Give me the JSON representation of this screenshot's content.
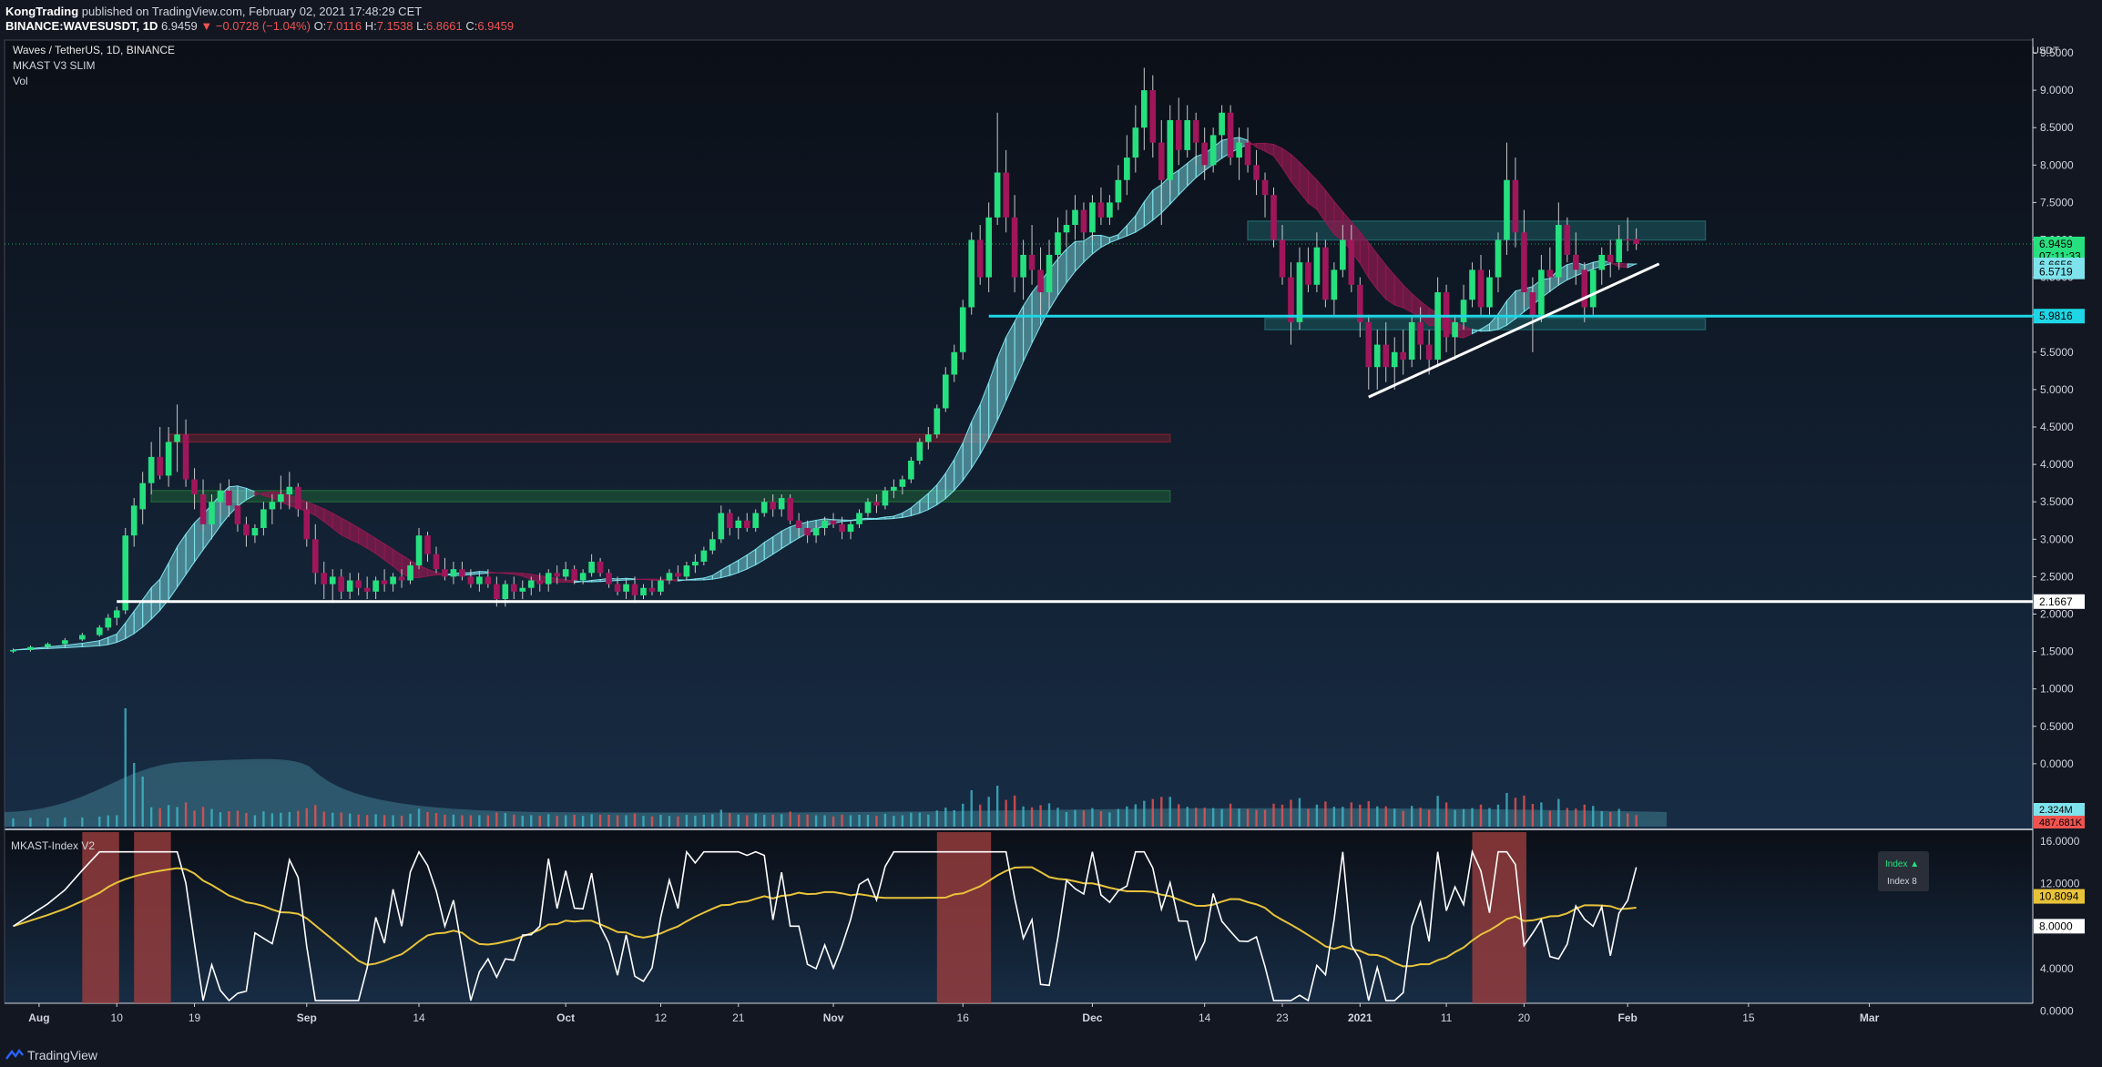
{
  "header": {
    "publisher": "KongTrading",
    "published_text": "published on TradingView.com, February 02, 2021 17:48:29 CET",
    "symbol": "BINANCE:WAVESUSDT, 1D",
    "last": "6.9459",
    "change": "−0.0728 (−1.04%)",
    "o_label": "O:",
    "o": "7.0116",
    "h_label": "H:",
    "h": "7.1538",
    "l_label": "L:",
    "l": "6.8661",
    "c_label": "C:",
    "c": "6.9459"
  },
  "legend": {
    "pair": "Waves / TetherUS, 1D, BINANCE",
    "indicator1": "MKAST V3 SLIM",
    "indicator2": "Vol",
    "pane2_title": "MKAST-Index V2",
    "index_up": "Index ▲",
    "index_8": "Index 8"
  },
  "footer": {
    "brand": "TradingView"
  },
  "colors": {
    "background": "#131722",
    "bull": "#26e07f",
    "bear": "#a0165a",
    "ribbon_up": "#7ee3ec",
    "ribbon_down": "#8b1a4f",
    "resistance_zone": "#1d5c63",
    "support_red": "#6e1f2c",
    "support_green": "#1d5e36",
    "index_line": "#ffffff",
    "index_ma": "#e8c33a",
    "index_zone": "#a4403f"
  },
  "chart_data": {
    "type": "candlestick",
    "title": "Waves / TetherUS, 1D, BINANCE",
    "currency_label": "USDT",
    "price_axis_ticks": [
      "9.5000",
      "9.0000",
      "8.5000",
      "8.0000",
      "7.5000",
      "7.0000",
      "6.5000",
      "6.0000",
      "5.5000",
      "5.0000",
      "4.5000",
      "4.0000",
      "3.5000",
      "3.0000",
      "2.5000",
      "2.0000",
      "1.5000",
      "1.0000",
      "0.5000",
      "0.0000"
    ],
    "x_axis_ticks": [
      "Aug",
      "10",
      "19",
      "Sep",
      "14",
      "Oct",
      "12",
      "21",
      "Nov",
      "16",
      "Dec",
      "14",
      "23",
      "2021",
      "11",
      "20",
      "Feb",
      "15",
      "Mar"
    ],
    "price_labels": [
      {
        "text": "6.9459",
        "value": 6.9459,
        "color": "#26e07f"
      },
      {
        "text": "07:11:33",
        "value": 6.78,
        "color": "#26e07f"
      },
      {
        "text": "6.6656",
        "value": 6.6656,
        "color": "#7ee3ec"
      },
      {
        "text": "6.5719",
        "value": 6.5719,
        "color": "#7ee3ec"
      },
      {
        "text": "5.9816",
        "value": 5.9816,
        "color": "#1fd6e6"
      },
      {
        "text": "2.1667",
        "value": 2.1667,
        "color": "#ffffff"
      }
    ],
    "volume_labels": [
      {
        "text": "2.324M",
        "color": "#7ee3ec"
      },
      {
        "text": "487.681K",
        "color": "#ef5350"
      }
    ],
    "horizontal_lines": [
      {
        "value": 2.1667,
        "color": "#ffffff",
        "from": "Aug 10"
      },
      {
        "value": 5.9816,
        "color": "#1fd6e6",
        "from": "Nov 19"
      }
    ],
    "zones": [
      {
        "low": 4.3,
        "high": 4.4,
        "color": "#6e1f2c",
        "from": "Aug 16",
        "to": "Dec 10"
      },
      {
        "low": 3.5,
        "high": 3.65,
        "color": "#1d5e36",
        "from": "Aug 14",
        "to": "Dec 10"
      },
      {
        "low": 7.0,
        "high": 7.25,
        "color": "#1d5c63",
        "from": "Dec 19",
        "to": "Feb 10"
      },
      {
        "low": 5.8,
        "high": 5.95,
        "color": "#1d5c63",
        "from": "Dec 21",
        "to": "Feb 10"
      }
    ],
    "trendline": {
      "from_date": "Jan 2",
      "from_value": 4.9,
      "to_date": "Feb 2",
      "to_value": 6.6,
      "color": "#ffffff"
    },
    "candles": [
      [
        "Jul 29",
        1.5,
        1.54,
        1.48,
        1.52
      ],
      [
        "Jul 31",
        1.52,
        1.58,
        1.5,
        1.56
      ],
      [
        "Aug 2",
        1.56,
        1.62,
        1.54,
        1.6
      ],
      [
        "Aug 4",
        1.6,
        1.68,
        1.58,
        1.65
      ],
      [
        "Aug 6",
        1.66,
        1.75,
        1.64,
        1.72
      ],
      [
        "Aug 8",
        1.72,
        1.85,
        1.7,
        1.82
      ],
      [
        "Aug 9",
        1.82,
        2.0,
        1.78,
        1.95
      ],
      [
        "Aug 10",
        1.95,
        2.1,
        1.85,
        2.05
      ],
      [
        "Aug 11",
        2.05,
        3.15,
        2.0,
        3.05
      ],
      [
        "Aug 12",
        3.05,
        3.55,
        2.9,
        3.45
      ],
      [
        "Aug 13",
        3.4,
        3.9,
        3.2,
        3.75
      ],
      [
        "Aug 14",
        3.75,
        4.3,
        3.6,
        4.1
      ],
      [
        "Aug 15",
        4.1,
        4.5,
        3.8,
        3.85
      ],
      [
        "Aug 16",
        3.85,
        4.5,
        3.7,
        4.3
      ],
      [
        "Aug 17",
        4.3,
        4.8,
        3.9,
        4.4
      ],
      [
        "Aug 18",
        4.4,
        4.6,
        3.7,
        3.8
      ],
      [
        "Aug 19",
        3.8,
        3.95,
        3.4,
        3.6
      ],
      [
        "Aug 20",
        3.6,
        3.8,
        3.1,
        3.2
      ],
      [
        "Aug 21",
        3.2,
        3.6,
        3.0,
        3.5
      ],
      [
        "Aug 22",
        3.5,
        3.75,
        3.3,
        3.65
      ],
      [
        "Aug 23",
        3.65,
        3.8,
        3.3,
        3.45
      ],
      [
        "Aug 24",
        3.45,
        3.6,
        3.1,
        3.2
      ],
      [
        "Aug 25",
        3.2,
        3.3,
        2.9,
        3.05
      ],
      [
        "Aug 26",
        3.05,
        3.2,
        2.95,
        3.15
      ],
      [
        "Aug 27",
        3.15,
        3.5,
        3.05,
        3.4
      ],
      [
        "Aug 28",
        3.4,
        3.6,
        3.2,
        3.5
      ],
      [
        "Aug 29",
        3.5,
        3.85,
        3.4,
        3.6
      ],
      [
        "Aug 30",
        3.6,
        3.9,
        3.4,
        3.7
      ],
      [
        "Aug 31",
        3.7,
        3.75,
        3.3,
        3.4
      ],
      [
        "Sep 1",
        3.4,
        3.5,
        2.9,
        3.0
      ],
      [
        "Sep 2",
        3.0,
        3.2,
        2.4,
        2.55
      ],
      [
        "Sep 3",
        2.55,
        2.7,
        2.2,
        2.4
      ],
      [
        "Sep 4",
        2.4,
        2.6,
        2.15,
        2.5
      ],
      [
        "Sep 5",
        2.5,
        2.6,
        2.2,
        2.3
      ],
      [
        "Sep 6",
        2.3,
        2.55,
        2.2,
        2.45
      ],
      [
        "Sep 7",
        2.45,
        2.55,
        2.25,
        2.35
      ],
      [
        "Sep 8",
        2.35,
        2.5,
        2.2,
        2.3
      ],
      [
        "Sep 9",
        2.3,
        2.5,
        2.2,
        2.45
      ],
      [
        "Sep 10",
        2.45,
        2.6,
        2.3,
        2.4
      ],
      [
        "Sep 11",
        2.4,
        2.55,
        2.3,
        2.5
      ],
      [
        "Sep 12",
        2.5,
        2.6,
        2.35,
        2.45
      ],
      [
        "Sep 13",
        2.45,
        2.7,
        2.4,
        2.65
      ],
      [
        "Sep 14",
        2.65,
        3.15,
        2.6,
        3.05
      ],
      [
        "Sep 15",
        3.05,
        3.1,
        2.7,
        2.8
      ],
      [
        "Sep 16",
        2.8,
        2.9,
        2.55,
        2.6
      ],
      [
        "Sep 17",
        2.6,
        2.75,
        2.45,
        2.5
      ],
      [
        "Sep 18",
        2.5,
        2.7,
        2.4,
        2.6
      ],
      [
        "Sep 19",
        2.6,
        2.7,
        2.45,
        2.5
      ],
      [
        "Sep 20",
        2.5,
        2.6,
        2.35,
        2.4
      ],
      [
        "Sep 21",
        2.4,
        2.55,
        2.3,
        2.5
      ],
      [
        "Sep 22",
        2.5,
        2.6,
        2.35,
        2.4
      ],
      [
        "Sep 23",
        2.4,
        2.5,
        2.1,
        2.2
      ],
      [
        "Sep 24",
        2.2,
        2.45,
        2.1,
        2.4
      ],
      [
        "Sep 25",
        2.4,
        2.5,
        2.2,
        2.3
      ],
      [
        "Sep 26",
        2.3,
        2.45,
        2.2,
        2.35
      ],
      [
        "Sep 27",
        2.35,
        2.5,
        2.25,
        2.45
      ],
      [
        "Sep 28",
        2.45,
        2.55,
        2.3,
        2.4
      ],
      [
        "Sep 29",
        2.4,
        2.6,
        2.3,
        2.55
      ],
      [
        "Sep 30",
        2.55,
        2.65,
        2.4,
        2.5
      ],
      [
        "Oct 1",
        2.5,
        2.7,
        2.45,
        2.6
      ],
      [
        "Oct 2",
        2.6,
        2.65,
        2.4,
        2.45
      ],
      [
        "Oct 3",
        2.45,
        2.6,
        2.4,
        2.55
      ],
      [
        "Oct 4",
        2.55,
        2.8,
        2.5,
        2.7
      ],
      [
        "Oct 5",
        2.7,
        2.75,
        2.5,
        2.55
      ],
      [
        "Oct 6",
        2.55,
        2.6,
        2.35,
        2.4
      ],
      [
        "Oct 7",
        2.4,
        2.5,
        2.25,
        2.3
      ],
      [
        "Oct 8",
        2.3,
        2.45,
        2.2,
        2.4
      ],
      [
        "Oct 9",
        2.4,
        2.5,
        2.15,
        2.25
      ],
      [
        "Oct 10",
        2.25,
        2.4,
        2.2,
        2.35
      ],
      [
        "Oct 11",
        2.35,
        2.45,
        2.25,
        2.3
      ],
      [
        "Oct 12",
        2.3,
        2.5,
        2.25,
        2.45
      ],
      [
        "Oct 13",
        2.45,
        2.6,
        2.4,
        2.55
      ],
      [
        "Oct 14",
        2.55,
        2.65,
        2.45,
        2.5
      ],
      [
        "Oct 15",
        2.5,
        2.7,
        2.45,
        2.65
      ],
      [
        "Oct 16",
        2.65,
        2.8,
        2.55,
        2.7
      ],
      [
        "Oct 17",
        2.7,
        2.9,
        2.65,
        2.85
      ],
      [
        "Oct 18",
        2.85,
        3.1,
        2.8,
        3.0
      ],
      [
        "Oct 19",
        3.0,
        3.45,
        2.95,
        3.35
      ],
      [
        "Oct 20",
        3.35,
        3.4,
        3.05,
        3.15
      ],
      [
        "Oct 21",
        3.15,
        3.3,
        3.0,
        3.25
      ],
      [
        "Oct 22",
        3.25,
        3.35,
        3.1,
        3.15
      ],
      [
        "Oct 23",
        3.15,
        3.4,
        3.1,
        3.35
      ],
      [
        "Oct 24",
        3.35,
        3.55,
        3.3,
        3.5
      ],
      [
        "Oct 25",
        3.5,
        3.6,
        3.3,
        3.4
      ],
      [
        "Oct 26",
        3.4,
        3.6,
        3.3,
        3.55
      ],
      [
        "Oct 27",
        3.55,
        3.6,
        3.2,
        3.25
      ],
      [
        "Oct 28",
        3.25,
        3.35,
        3.05,
        3.15
      ],
      [
        "Oct 29",
        3.15,
        3.25,
        2.95,
        3.05
      ],
      [
        "Oct 30",
        3.05,
        3.2,
        2.95,
        3.15
      ],
      [
        "Oct 31",
        3.15,
        3.3,
        3.05,
        3.25
      ],
      [
        "Nov 1",
        3.25,
        3.35,
        3.15,
        3.2
      ],
      [
        "Nov 2",
        3.2,
        3.3,
        3.0,
        3.1
      ],
      [
        "Nov 3",
        3.1,
        3.25,
        3.0,
        3.2
      ],
      [
        "Nov 4",
        3.2,
        3.4,
        3.15,
        3.35
      ],
      [
        "Nov 5",
        3.35,
        3.55,
        3.3,
        3.5
      ],
      [
        "Nov 6",
        3.5,
        3.6,
        3.35,
        3.45
      ],
      [
        "Nov 7",
        3.45,
        3.7,
        3.4,
        3.65
      ],
      [
        "Nov 8",
        3.65,
        3.8,
        3.55,
        3.7
      ],
      [
        "Nov 9",
        3.7,
        3.85,
        3.6,
        3.8
      ],
      [
        "Nov 10",
        3.8,
        4.1,
        3.75,
        4.05
      ],
      [
        "Nov 11",
        4.05,
        4.35,
        4.0,
        4.3
      ],
      [
        "Nov 12",
        4.3,
        4.5,
        4.2,
        4.4
      ],
      [
        "Nov 13",
        4.4,
        4.8,
        4.35,
        4.75
      ],
      [
        "Nov 14",
        4.75,
        5.3,
        4.7,
        5.2
      ],
      [
        "Nov 15",
        5.2,
        5.6,
        5.1,
        5.5
      ],
      [
        "Nov 16",
        5.5,
        6.2,
        5.4,
        6.1
      ],
      [
        "Nov 17",
        6.1,
        7.1,
        6.0,
        7.0
      ],
      [
        "Nov 18",
        7.0,
        7.2,
        6.4,
        6.5
      ],
      [
        "Nov 19",
        6.5,
        7.5,
        6.3,
        7.3
      ],
      [
        "Nov 20",
        7.3,
        8.7,
        7.2,
        7.9
      ],
      [
        "Nov 21",
        7.9,
        8.2,
        7.1,
        7.3
      ],
      [
        "Nov 22",
        7.3,
        7.6,
        6.3,
        6.5
      ],
      [
        "Nov 23",
        6.5,
        7.0,
        6.2,
        6.8
      ],
      [
        "Nov 24",
        6.8,
        7.2,
        6.4,
        6.6
      ],
      [
        "Nov 25",
        6.6,
        6.9,
        6.0,
        6.3
      ],
      [
        "Nov 26",
        6.3,
        7.0,
        6.1,
        6.8
      ],
      [
        "Nov 27",
        6.8,
        7.3,
        6.6,
        7.1
      ],
      [
        "Nov 28",
        7.1,
        7.4,
        6.9,
        7.2
      ],
      [
        "Nov 29",
        7.2,
        7.6,
        7.0,
        7.4
      ],
      [
        "Nov 30",
        7.4,
        7.5,
        7.0,
        7.1
      ],
      [
        "Dec 1",
        7.1,
        7.6,
        7.0,
        7.5
      ],
      [
        "Dec 2",
        7.5,
        7.7,
        7.2,
        7.3
      ],
      [
        "Dec 3",
        7.3,
        7.6,
        7.2,
        7.5
      ],
      [
        "Dec 4",
        7.5,
        8.0,
        7.4,
        7.8
      ],
      [
        "Dec 5",
        7.8,
        8.4,
        7.6,
        8.1
      ],
      [
        "Dec 6",
        8.1,
        8.8,
        7.9,
        8.5
      ],
      [
        "Dec 7",
        8.5,
        9.3,
        8.2,
        9.0
      ],
      [
        "Dec 8",
        9.0,
        9.2,
        8.1,
        8.3
      ],
      [
        "Dec 9",
        8.3,
        8.6,
        7.2,
        7.8
      ],
      [
        "Dec 10",
        7.8,
        8.8,
        7.6,
        8.6
      ],
      [
        "Dec 11",
        8.6,
        8.9,
        8.0,
        8.2
      ],
      [
        "Dec 12",
        8.2,
        8.8,
        8.1,
        8.6
      ],
      [
        "Dec 13",
        8.6,
        8.7,
        8.0,
        8.3
      ],
      [
        "Dec 14",
        8.3,
        8.5,
        7.8,
        8.0
      ],
      [
        "Dec 15",
        8.0,
        8.5,
        7.9,
        8.4
      ],
      [
        "Dec 16",
        8.4,
        8.8,
        8.2,
        8.7
      ],
      [
        "Dec 17",
        8.7,
        8.8,
        8.0,
        8.1
      ],
      [
        "Dec 18",
        8.1,
        8.5,
        7.8,
        8.3
      ],
      [
        "Dec 19",
        8.3,
        8.5,
        7.9,
        8.0
      ],
      [
        "Dec 20",
        8.0,
        8.2,
        7.6,
        7.8
      ],
      [
        "Dec 21",
        7.8,
        7.9,
        7.3,
        7.6
      ],
      [
        "Dec 22",
        7.6,
        7.7,
        6.9,
        7.0
      ],
      [
        "Dec 23",
        7.0,
        7.2,
        6.4,
        6.5
      ],
      [
        "Dec 24",
        6.5,
        6.7,
        5.6,
        5.9
      ],
      [
        "Dec 25",
        5.9,
        6.9,
        5.8,
        6.7
      ],
      [
        "Dec 26",
        6.7,
        6.9,
        6.3,
        6.4
      ],
      [
        "Dec 27",
        6.4,
        7.1,
        6.3,
        6.9
      ],
      [
        "Dec 28",
        6.9,
        7.0,
        6.1,
        6.2
      ],
      [
        "Dec 29",
        6.2,
        6.7,
        6.0,
        6.6
      ],
      [
        "Dec 30",
        6.6,
        7.2,
        6.5,
        7.0
      ],
      [
        "Dec 31",
        7.0,
        7.2,
        6.3,
        6.4
      ],
      [
        "Jan 1",
        6.4,
        6.5,
        5.7,
        5.9
      ],
      [
        "Jan 2",
        5.9,
        6.0,
        5.0,
        5.3
      ],
      [
        "Jan 3",
        5.3,
        5.8,
        5.0,
        5.6
      ],
      [
        "Jan 4",
        5.6,
        5.9,
        5.1,
        5.3
      ],
      [
        "Jan 5",
        5.3,
        5.7,
        5.0,
        5.5
      ],
      [
        "Jan 6",
        5.5,
        5.8,
        5.2,
        5.4
      ],
      [
        "Jan 7",
        5.4,
        6.0,
        5.3,
        5.9
      ],
      [
        "Jan 8",
        5.9,
        6.1,
        5.4,
        5.6
      ],
      [
        "Jan 9",
        5.6,
        5.8,
        5.2,
        5.4
      ],
      [
        "Jan 10",
        5.4,
        6.5,
        5.3,
        6.3
      ],
      [
        "Jan 11",
        6.3,
        6.4,
        5.5,
        5.7
      ],
      [
        "Jan 12",
        5.7,
        6.0,
        5.4,
        5.9
      ],
      [
        "Jan 13",
        5.9,
        6.4,
        5.8,
        6.2
      ],
      [
        "Jan 14",
        6.2,
        6.7,
        6.1,
        6.6
      ],
      [
        "Jan 15",
        6.6,
        6.8,
        6.0,
        6.1
      ],
      [
        "Jan 16",
        6.1,
        6.6,
        6.0,
        6.5
      ],
      [
        "Jan 17",
        6.5,
        7.1,
        6.3,
        7.0
      ],
      [
        "Jan 18",
        7.0,
        8.3,
        6.8,
        7.8
      ],
      [
        "Jan 19",
        7.8,
        8.1,
        6.9,
        7.1
      ],
      [
        "Jan 20",
        7.1,
        7.4,
        6.1,
        6.3
      ],
      [
        "Jan 21",
        6.3,
        6.5,
        5.5,
        6.0
      ],
      [
        "Jan 22",
        6.0,
        6.8,
        5.9,
        6.6
      ],
      [
        "Jan 23",
        6.6,
        6.9,
        6.3,
        6.5
      ],
      [
        "Jan 24",
        6.5,
        7.5,
        6.4,
        7.2
      ],
      [
        "Jan 25",
        7.2,
        7.3,
        6.7,
        6.8
      ],
      [
        "Jan 26",
        6.8,
        7.1,
        6.4,
        6.6
      ],
      [
        "Jan 27",
        6.6,
        6.7,
        5.9,
        6.1
      ],
      [
        "Jan 28",
        6.1,
        6.7,
        6.0,
        6.6
      ],
      [
        "Jan 29",
        6.6,
        6.9,
        6.4,
        6.8
      ],
      [
        "Jan 30",
        6.8,
        7.0,
        6.5,
        6.7
      ],
      [
        "Jan 31",
        6.7,
        7.2,
        6.6,
        7.01
      ],
      [
        "Feb 1",
        7.01,
        7.3,
        6.85,
        7.0
      ],
      [
        "Feb 2",
        7.0116,
        7.1538,
        6.8661,
        6.9459
      ]
    ],
    "volume_axis_ticks": [
      "2.324M",
      "487.681K"
    ],
    "index_pane": {
      "title": "MKAST-Index V2",
      "y_ticks": [
        "16.0000",
        "12.0000",
        "8.0000",
        "4.0000",
        "0.0000"
      ],
      "last_labels": [
        {
          "text": "10.8094",
          "value": 10.8094,
          "color": "#e8c33a"
        },
        {
          "text": "8.0000",
          "value": 8.0,
          "color": "#ffffff"
        }
      ],
      "ylim": [
        0,
        16
      ]
    }
  }
}
